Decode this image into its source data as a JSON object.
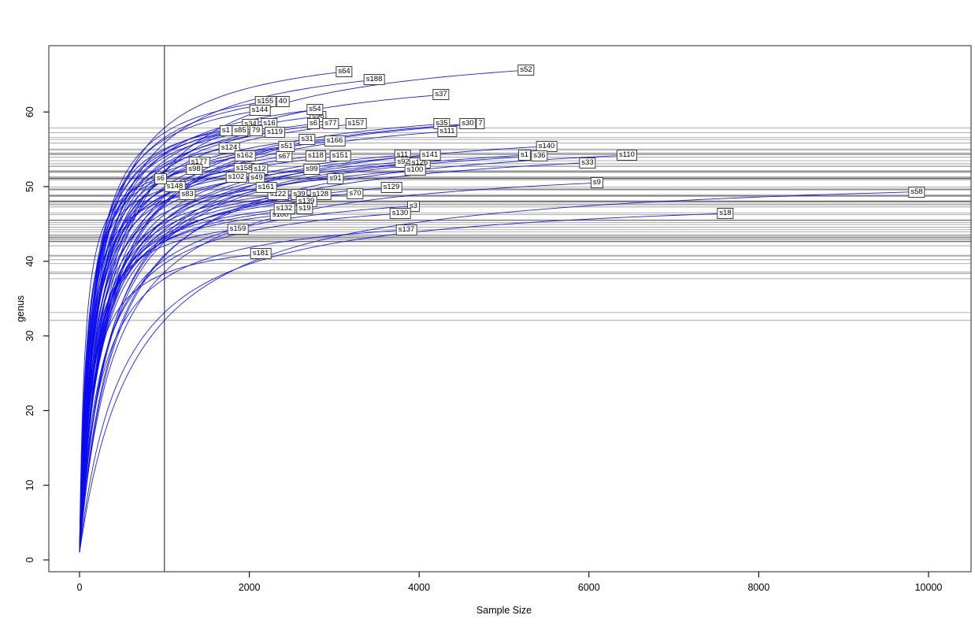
{
  "chart_data": {
    "type": "line",
    "title": "",
    "xlabel": "Sample Size",
    "ylabel": "genus",
    "x_ticks": [
      0,
      2000,
      4000,
      6000,
      8000,
      10000
    ],
    "y_ticks": [
      0,
      10,
      20,
      30,
      40,
      50,
      60
    ],
    "xlim": [
      -360,
      10520
    ],
    "ylim": [
      -1.6,
      68.9
    ],
    "grid": false,
    "legend": "none",
    "curve_color": "#0b0bee",
    "reference_line_color": "#000000",
    "box_color": "#555555",
    "vline_x": 1000,
    "curve_start": {
      "x": 0,
      "y": 1
    },
    "samples": [
      {
        "label": "40",
        "x": 2393,
        "y": 61.4
      },
      {
        "label": "s155",
        "x": 2189,
        "y": 61.4
      },
      {
        "label": "s144",
        "x": 2124,
        "y": 60.2
      },
      {
        "label": "s96",
        "x": 2810,
        "y": 59.4
      },
      {
        "label": "s54",
        "x": 2773,
        "y": 60.3
      },
      {
        "label": "s64",
        "x": 3117,
        "y": 65.4
      },
      {
        "label": "s188",
        "x": 3470,
        "y": 64.3
      },
      {
        "label": "s52",
        "x": 5260,
        "y": 65.6
      },
      {
        "label": "s37",
        "x": 4258,
        "y": 62.3
      },
      {
        "label": "s34",
        "x": 2013,
        "y": 58.3
      },
      {
        "label": "s6",
        "x": 2755,
        "y": 58.4
      },
      {
        "label": "s16",
        "x": 2236,
        "y": 58.4
      },
      {
        "label": "s77",
        "x": 2959,
        "y": 58.4
      },
      {
        "label": "s157",
        "x": 3256,
        "y": 58.4
      },
      {
        "label": "s35",
        "x": 4267,
        "y": 58.4
      },
      {
        "label": "7",
        "x": 4722,
        "y": 58.4
      },
      {
        "label": "s30",
        "x": 4573,
        "y": 58.4
      },
      {
        "label": "s1",
        "x": 1725,
        "y": 57.5
      },
      {
        "label": "79",
        "x": 2078,
        "y": 57.5
      },
      {
        "label": "s85",
        "x": 1892,
        "y": 57.5
      },
      {
        "label": "s119",
        "x": 2301,
        "y": 57.3
      },
      {
        "label": "s111",
        "x": 4332,
        "y": 57.4
      },
      {
        "label": "s31",
        "x": 2681,
        "y": 56.3
      },
      {
        "label": "s166",
        "x": 3006,
        "y": 56.1
      },
      {
        "label": "s124",
        "x": 1763,
        "y": 55.2
      },
      {
        "label": "s51",
        "x": 2440,
        "y": 55.4
      },
      {
        "label": "s140",
        "x": 5501,
        "y": 55.4
      },
      {
        "label": "s162",
        "x": 1948,
        "y": 54.1
      },
      {
        "label": "s67",
        "x": 2412,
        "y": 54.0
      },
      {
        "label": "s118",
        "x": 2783,
        "y": 54.1
      },
      {
        "label": "s151",
        "x": 3070,
        "y": 54.1
      },
      {
        "label": "s11",
        "x": 3803,
        "y": 54.2
      },
      {
        "label": "s1",
        "x": 5241,
        "y": 54.2
      },
      {
        "label": "s36",
        "x": 5417,
        "y": 54.1
      },
      {
        "label": "s110",
        "x": 6447,
        "y": 54.2
      },
      {
        "label": "s33",
        "x": 5983,
        "y": 53.2
      },
      {
        "label": "s92",
        "x": 3813,
        "y": 53.3
      },
      {
        "label": "s126",
        "x": 4008,
        "y": 53.2
      },
      {
        "label": "s141",
        "x": 4128,
        "y": 54.2
      },
      {
        "label": "s100",
        "x": 3952,
        "y": 52.2
      },
      {
        "label": "s177",
        "x": 1410,
        "y": 53.3
      },
      {
        "label": "s98",
        "x": 1354,
        "y": 52.3
      },
      {
        "label": "s158",
        "x": 1939,
        "y": 52.4
      },
      {
        "label": "s12",
        "x": 2124,
        "y": 52.3
      },
      {
        "label": "s99",
        "x": 2737,
        "y": 52.3
      },
      {
        "label": "s49",
        "x": 2087,
        "y": 51.2
      },
      {
        "label": "s102",
        "x": 1846,
        "y": 51.3
      },
      {
        "label": "s148",
        "x": 1122,
        "y": 50.0
      },
      {
        "label": "s6",
        "x": 955,
        "y": 51.1
      },
      {
        "label": "s91",
        "x": 3015,
        "y": 51.1
      },
      {
        "label": "s9",
        "x": 6094,
        "y": 50.5
      },
      {
        "label": "s122",
        "x": 2338,
        "y": 48.9
      },
      {
        "label": "s161",
        "x": 2198,
        "y": 49.9
      },
      {
        "label": "s129",
        "x": 3673,
        "y": 49.9
      },
      {
        "label": "s83",
        "x": 1271,
        "y": 48.9
      },
      {
        "label": "s39",
        "x": 2588,
        "y": 48.9
      },
      {
        "label": "s128",
        "x": 2838,
        "y": 48.9
      },
      {
        "label": "s139",
        "x": 2672,
        "y": 48.0
      },
      {
        "label": "s70",
        "x": 3247,
        "y": 49.1
      },
      {
        "label": "s58",
        "x": 9861,
        "y": 49.3
      },
      {
        "label": "s180",
        "x": 2366,
        "y": 46.2
      },
      {
        "label": "s132",
        "x": 2412,
        "y": 47.0
      },
      {
        "label": "s19",
        "x": 2653,
        "y": 47.0
      },
      {
        "label": "s3",
        "x": 3933,
        "y": 47.4
      },
      {
        "label": "s130",
        "x": 3776,
        "y": 46.4
      },
      {
        "label": "s18",
        "x": 7607,
        "y": 46.4
      },
      {
        "label": "s159",
        "x": 1864,
        "y": 44.3
      },
      {
        "label": "s137",
        "x": 3850,
        "y": 44.2
      },
      {
        "label": "s181",
        "x": 2134,
        "y": 41.0
      }
    ]
  }
}
